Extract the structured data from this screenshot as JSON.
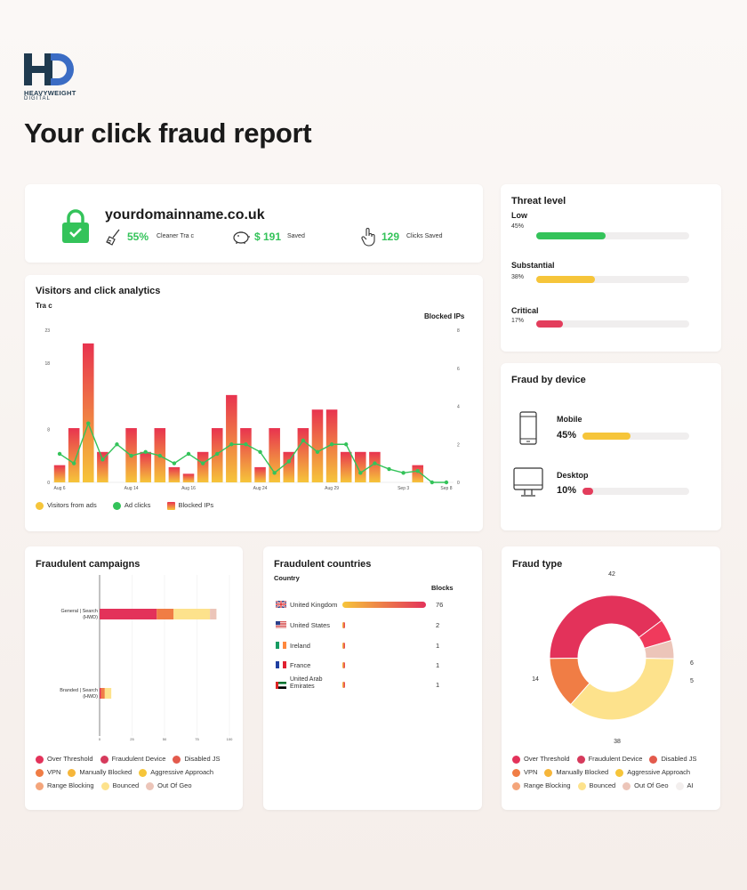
{
  "brand": {
    "name": "HEAVYWEIGHT",
    "sub": "DIGITAL",
    "colors": {
      "navy": "#1f3a4f",
      "accent": "#3b6cc4"
    }
  },
  "page_title": "Your click fraud report",
  "summary": {
    "domain": "yourdomainname.co.uk",
    "stats": [
      {
        "icon": "broom-icon",
        "value": "55%",
        "label": "Cleaner Tra c"
      },
      {
        "icon": "piggy-bank-icon",
        "value": "$ 191",
        "label": "Saved"
      },
      {
        "icon": "hand-click-icon",
        "value": "129",
        "label": "Clicks Saved"
      }
    ]
  },
  "threat": {
    "title": "Threat level",
    "levels": [
      {
        "name": "Low",
        "pct_label": "45%",
        "pct": 45,
        "color": "#34c35a"
      },
      {
        "name": "Substantial",
        "pct_label": "38%",
        "pct": 38,
        "color": "#f6c53a"
      },
      {
        "name": "Critical",
        "pct_label": "17%",
        "pct": 17,
        "color": "#e33d5c"
      }
    ]
  },
  "device": {
    "title": "Fraud by device",
    "items": [
      {
        "icon": "mobile-icon",
        "name": "Mobile",
        "pct_label": "45%",
        "pct": 45,
        "color": "#f6c53a"
      },
      {
        "icon": "desktop-icon",
        "name": "Desktop",
        "pct_label": "10%",
        "pct": 10,
        "color": "#e33d5c"
      }
    ]
  },
  "analytics": {
    "title": "Visitors and click analytics",
    "left_label": "Tra c",
    "right_label": "Blocked IPs",
    "legend": [
      {
        "label": "Visitors from ads",
        "color": "#f6c53a"
      },
      {
        "label": "Ad clicks",
        "color": "#34c35a"
      },
      {
        "label": "Blocked IPs",
        "color": "#f06a3e"
      }
    ]
  },
  "campaigns": {
    "title": "Fraudulent campaigns",
    "legend": [
      {
        "label": "Over Threshold",
        "color": "#e3325a"
      },
      {
        "label": "Fraudulent Device",
        "color": "#d63a5c"
      },
      {
        "label": "Disabled JS",
        "color": "#e35a4c"
      },
      {
        "label": "VPN",
        "color": "#f07d45"
      },
      {
        "label": "Manually Blocked",
        "color": "#f6b63a"
      },
      {
        "label": "Aggressive Approach",
        "color": "#f6c53a"
      },
      {
        "label": "Range Blocking",
        "color": "#f4a57b"
      },
      {
        "label": "Bounced",
        "color": "#fde28c"
      },
      {
        "label": "Out Of Geo",
        "color": "#ecc5b9"
      }
    ]
  },
  "countries": {
    "title": "Fraudulent countries",
    "col_country": "Country",
    "col_blocks": "Blocks",
    "rows": [
      {
        "flag": "uk-flag-icon",
        "name": "United Kingdom",
        "blocks": 76
      },
      {
        "flag": "us-flag-icon",
        "name": "United States",
        "blocks": 2
      },
      {
        "flag": "ireland-flag-icon",
        "name": "Ireland",
        "blocks": 1
      },
      {
        "flag": "france-flag-icon",
        "name": "France",
        "blocks": 1
      },
      {
        "flag": "uae-flag-icon",
        "name": "United Arab Emirates",
        "blocks": 1
      }
    ]
  },
  "fraudtype": {
    "title": "Fraud type",
    "legend": [
      {
        "label": "Over Threshold",
        "color": "#e3325a"
      },
      {
        "label": "Fraudulent Device",
        "color": "#d63a5c"
      },
      {
        "label": "Disabled JS",
        "color": "#e35a4c"
      },
      {
        "label": "VPN",
        "color": "#f07d45"
      },
      {
        "label": "Manually Blocked",
        "color": "#f6b63a"
      },
      {
        "label": "Aggressive Approach",
        "color": "#f6c53a"
      },
      {
        "label": "Range Blocking",
        "color": "#f4a57b"
      },
      {
        "label": "Bounced",
        "color": "#fde28c"
      },
      {
        "label": "Out Of Geo",
        "color": "#ecc5b9"
      },
      {
        "label": "AI",
        "color": "#f3efee"
      }
    ]
  },
  "chart_data": [
    {
      "type": "bar",
      "title": "Visitors and click analytics",
      "ylabel": "Tra c",
      "y2label": "Blocked IPs",
      "ylim": [
        0,
        23
      ],
      "y2lim": [
        0,
        8
      ],
      "yticks": [
        "0",
        "8",
        "18",
        "23"
      ],
      "y2ticks": [
        "0",
        "2",
        "4",
        "6",
        "8"
      ],
      "xticks": [
        "Aug 6",
        "Aug 14",
        "Aug 16",
        "Aug 24",
        "Aug 29",
        "Sep 3",
        "Sep 8"
      ],
      "series": [
        {
          "name": "Blocked IPs",
          "kind": "bar",
          "values": [
            2.6,
            8.2,
            21,
            4.6,
            0,
            8.2,
            4.6,
            8.2,
            2.3,
            1.3,
            4.6,
            8.2,
            13.2,
            8.2,
            2.3,
            8.2,
            4.6,
            8.2,
            11,
            11,
            4.6,
            4.6,
            4.6,
            0,
            0,
            2.6,
            0,
            0
          ]
        },
        {
          "name": "Ad clicks",
          "kind": "line",
          "values": [
            1.5,
            1,
            3.1,
            1.2,
            2,
            1.4,
            1.6,
            1.4,
            1,
            1.5,
            1,
            1.5,
            2,
            2,
            1.6,
            0.5,
            1.1,
            2.2,
            1.6,
            2,
            2,
            0.5,
            1,
            0.7,
            0.5,
            0.6,
            0,
            0
          ]
        }
      ]
    },
    {
      "type": "bar",
      "title": "Fraudulent campaigns",
      "categories": [
        "General | Search (HWD)",
        "Branded | Search (HWD)"
      ],
      "xticks": [
        "0",
        "25",
        "50",
        "75",
        "100"
      ],
      "xlim": [
        0,
        100
      ],
      "series": [
        {
          "name": "Over Threshold",
          "values": [
            44,
            1
          ]
        },
        {
          "name": "VPN",
          "values": [
            13,
            3
          ]
        },
        {
          "name": "Bounced",
          "values": [
            28,
            5
          ]
        },
        {
          "name": "Out Of Geo",
          "values": [
            5,
            0
          ]
        }
      ]
    },
    {
      "type": "pie",
      "title": "Fraud type",
      "labels": [
        "42",
        "6",
        "5",
        "38",
        "14"
      ],
      "values": [
        42,
        6,
        5,
        38,
        14
      ],
      "colors": [
        "#e3325a",
        "#f03a5c",
        "#ecc5b9",
        "#fde28c",
        "#f07d45"
      ]
    }
  ]
}
